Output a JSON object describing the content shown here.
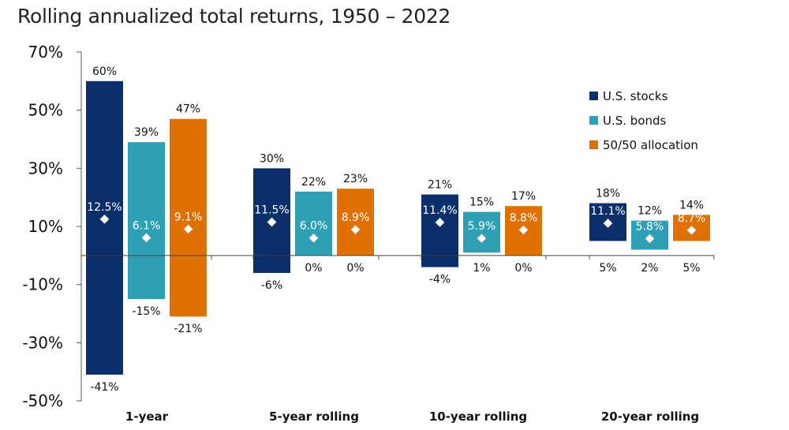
{
  "title": "Rolling annualized total returns, 1950 – 2022",
  "chart_data": {
    "type": "bar",
    "subtype": "floating-range",
    "title": "Rolling annualized total returns, 1950 – 2022",
    "categories": [
      "1-year",
      "5-year rolling",
      "10-year rolling",
      "20-year rolling"
    ],
    "series": [
      {
        "name": "U.S. stocks",
        "color": "#0a2f6b",
        "max": [
          60,
          30,
          21,
          18
        ],
        "min": [
          -41,
          -6,
          -4,
          5
        ],
        "average": [
          12.5,
          11.5,
          11.4,
          11.1
        ],
        "max_labels": [
          "60%",
          "30%",
          "21%",
          "18%"
        ],
        "min_labels": [
          "-41%",
          "-6%",
          "-4%",
          "5%"
        ],
        "average_labels": [
          "12.5%",
          "11.5%",
          "11.4%",
          "11.1%"
        ]
      },
      {
        "name": "U.S. bonds",
        "color": "#2f9fb5",
        "max": [
          39,
          22,
          15,
          12
        ],
        "min": [
          -15,
          0,
          1,
          2
        ],
        "average": [
          6.1,
          6.0,
          5.9,
          5.8
        ],
        "max_labels": [
          "39%",
          "22%",
          "15%",
          "12%"
        ],
        "min_labels": [
          "-15%",
          "0%",
          "1%",
          "2%"
        ],
        "average_labels": [
          "6.1%",
          "6.0%",
          "5.9%",
          "5.8%"
        ]
      },
      {
        "name": "50/50 allocation",
        "color": "#e07000",
        "max": [
          47,
          23,
          17,
          14
        ],
        "min": [
          -21,
          0,
          0,
          5
        ],
        "average": [
          9.1,
          8.9,
          8.8,
          8.7
        ],
        "max_labels": [
          "47%",
          "23%",
          "17%",
          "14%"
        ],
        "min_labels": [
          "-21%",
          "0%",
          "0%",
          "5%"
        ],
        "average_labels": [
          "9.1%",
          "8.9%",
          "8.8%",
          "8.7%"
        ]
      }
    ],
    "yticks": [
      70,
      50,
      30,
      10,
      -10,
      -30,
      -50
    ],
    "ytick_labels": [
      "70%",
      "50%",
      "30%",
      "10%",
      "-10%",
      "-30%",
      "-50%"
    ],
    "ylim": [
      -50,
      70
    ],
    "grid": false,
    "legend": "top-right",
    "marker": "diamond at average"
  }
}
